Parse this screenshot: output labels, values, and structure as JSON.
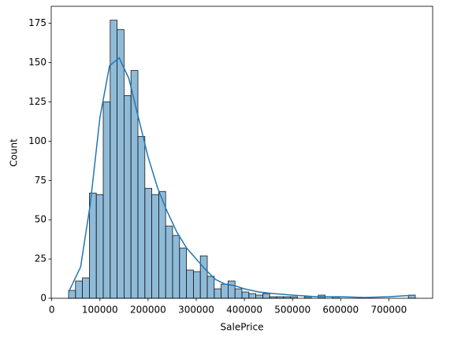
{
  "chart_data": {
    "type": "histogram",
    "xlabel": "SalePrice",
    "ylabel": "Count",
    "bins": [
      34900,
      49302,
      63704,
      78106,
      92508,
      106910,
      121312,
      135714,
      150116,
      164518,
      178920,
      193322,
      207724,
      222126,
      236528,
      250930,
      265332,
      279734,
      294136,
      308538,
      322940,
      337342,
      351744,
      366146,
      380548,
      394950,
      409352,
      423754,
      438156,
      452558,
      466960,
      481362,
      495764,
      510166,
      524568,
      538970,
      553372,
      567774,
      582176,
      596578,
      610980,
      625382,
      639784,
      654186,
      668588,
      682990,
      697392,
      711794,
      726196,
      740598,
      755000
    ],
    "values": [
      5,
      11,
      13,
      67,
      66,
      125,
      177,
      171,
      129,
      145,
      103,
      70,
      66,
      68,
      46,
      40,
      32,
      18,
      17,
      27,
      14,
      6,
      9,
      11,
      6,
      4,
      3,
      2,
      3,
      1,
      1,
      1,
      1,
      0,
      1,
      0,
      2,
      0,
      1,
      0,
      0,
      0,
      0,
      0,
      0,
      0,
      0,
      0,
      0,
      2
    ],
    "color": "#1f77b4",
    "kde": {
      "x": [
        35000,
        60000,
        80000,
        100000,
        120000,
        140000,
        160000,
        180000,
        200000,
        220000,
        240000,
        260000,
        280000,
        300000,
        320000,
        340000,
        360000,
        380000,
        400000,
        430000,
        460000,
        500000,
        550000,
        600000,
        650000,
        700000,
        755000
      ],
      "values": [
        4,
        20,
        60,
        115,
        148,
        153,
        140,
        115,
        90,
        70,
        55,
        42,
        32,
        25,
        18,
        12,
        9,
        8,
        6,
        4,
        3,
        2,
        1,
        1,
        0.5,
        1,
        2
      ]
    },
    "xlim": [
      -1105,
      791005
    ],
    "ylim": [
      0,
      185.85
    ],
    "xticks": [
      0,
      100000,
      200000,
      300000,
      400000,
      500000,
      600000,
      700000
    ],
    "yticks": [
      0,
      25,
      50,
      75,
      100,
      125,
      150,
      175
    ]
  }
}
